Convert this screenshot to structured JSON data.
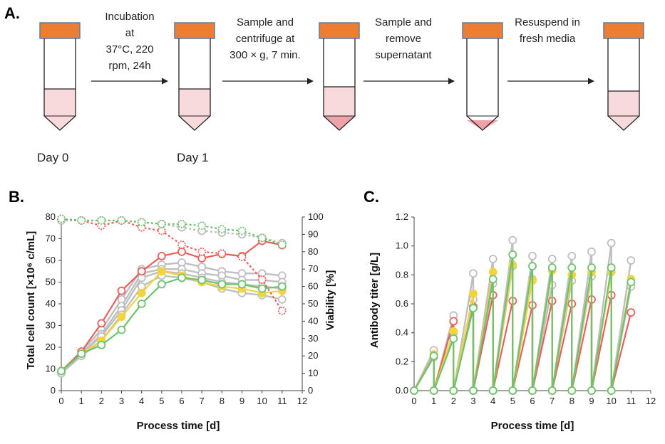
{
  "schematic": {
    "panel": "A.",
    "steps": [
      {
        "lines": [
          "Incubation",
          "at",
          "37°C, 220",
          "rpm, 24h"
        ]
      },
      {
        "lines": [
          "Sample and",
          "centrifuge at",
          "300 × g, 7 min."
        ]
      },
      {
        "lines": [
          "Sample and",
          "remove",
          "supernatant"
        ]
      },
      {
        "lines": [
          "Resuspend in",
          "fresh media"
        ]
      }
    ],
    "days": [
      "Day 0",
      "Day 1"
    ],
    "colors": {
      "cap": "#ED7D31",
      "cap_border": "#5B7FA6",
      "media": "#F8D9DC",
      "pellet": "#EFA2A8"
    }
  },
  "chart_data": [
    {
      "panel": "B.",
      "type": "line",
      "xlabel": "Process time [d]",
      "ylabel": "Total cell count [×10⁶ c/mL]",
      "y2label": "Viability [%]",
      "xlim": [
        0,
        12
      ],
      "ylim": [
        0,
        80
      ],
      "y2lim": [
        0,
        100
      ],
      "x_ticks": [
        "0",
        "1",
        "2",
        "3",
        "4",
        "5",
        "6",
        "7",
        "8",
        "9",
        "10",
        "11",
        "12"
      ],
      "y_ticks": [
        "0",
        "10",
        "20",
        "30",
        "40",
        "50",
        "60",
        "70",
        "80"
      ],
      "y2_ticks": [
        "0",
        "10",
        "20",
        "30",
        "40",
        "50",
        "60",
        "70",
        "80",
        "90",
        "100"
      ],
      "x": [
        0,
        1,
        2,
        3,
        4,
        5,
        6,
        7,
        8,
        9,
        10,
        11
      ],
      "series": [
        {
          "name": "grey-high",
          "axis": "left",
          "color": "#bfbfbf",
          "values": [
            9,
            18,
            28,
            42,
            56,
            58,
            59,
            57,
            55,
            54,
            54,
            53
          ]
        },
        {
          "name": "grey-mid-1",
          "axis": "left",
          "color": "#bfbfbf",
          "values": [
            9,
            17,
            26,
            39,
            54,
            56,
            56,
            54,
            53,
            51,
            51,
            50
          ]
        },
        {
          "name": "grey-mid-2",
          "axis": "left",
          "color": "#bfbfbf",
          "values": [
            8,
            17,
            25,
            37,
            52,
            55,
            54,
            52,
            50,
            49,
            48,
            47
          ]
        },
        {
          "name": "grey-low",
          "axis": "left",
          "color": "#bfbfbf",
          "values": [
            8,
            16,
            23,
            35,
            48,
            53,
            52,
            50,
            47,
            45,
            44,
            42
          ]
        },
        {
          "name": "red",
          "axis": "left",
          "color": "#E8605C",
          "values": [
            9,
            18,
            31,
            46,
            55,
            62,
            64,
            61,
            63,
            62,
            69,
            67
          ]
        },
        {
          "name": "yellow",
          "axis": "left",
          "color": "#F2D43C",
          "values": [
            9,
            17,
            23,
            34,
            45,
            55,
            53,
            50,
            48,
            47,
            45,
            46
          ]
        },
        {
          "name": "green",
          "axis": "left",
          "color": "#6DC36D",
          "values": [
            9,
            17,
            21,
            28,
            40,
            49,
            52,
            51,
            49,
            49,
            47,
            48
          ]
        },
        {
          "name": "grey-viability",
          "axis": "right",
          "color": "#bfbfbf",
          "values": [
            98,
            98,
            98,
            98,
            97,
            96,
            94,
            92,
            91,
            90,
            88,
            85
          ]
        },
        {
          "name": "red-viability",
          "axis": "right",
          "color": "#E8605C",
          "values": [
            99,
            98,
            95,
            98,
            94,
            92,
            84,
            80,
            79,
            77,
            64,
            46
          ]
        },
        {
          "name": "green-viability",
          "axis": "right",
          "color": "#6DC36D",
          "values": [
            99,
            98,
            98,
            98,
            97,
            96,
            96,
            95,
            93,
            92,
            88,
            84
          ]
        }
      ]
    },
    {
      "panel": "C.",
      "type": "line",
      "xlabel": "Process time [d]",
      "ylabel": "Antibody titer [g/L]",
      "xlim": [
        0,
        12
      ],
      "ylim": [
        0,
        1.2
      ],
      "x_ticks": [
        "0",
        "1",
        "2",
        "3",
        "4",
        "5",
        "6",
        "7",
        "8",
        "9",
        "10",
        "11",
        "12"
      ],
      "y_ticks": [
        "0.0",
        "0.2",
        "0.4",
        "0.6",
        "0.8",
        "1.0",
        "1.2"
      ],
      "x": [
        0,
        1,
        1,
        2,
        2,
        3,
        3,
        4,
        4,
        5,
        5,
        6,
        6,
        7,
        7,
        8,
        8,
        9,
        9,
        10,
        10,
        11
      ],
      "series": [
        {
          "name": "grey-high",
          "color": "#bfbfbf",
          "values": [
            0,
            0.28,
            0,
            0.52,
            0,
            0.81,
            0,
            0.91,
            0,
            1.04,
            0,
            0.93,
            0,
            0.91,
            0,
            0.93,
            0,
            0.96,
            0,
            1.02,
            0,
            0.9
          ]
        },
        {
          "name": "grey-low",
          "color": "#bfbfbf",
          "values": [
            0,
            0.23,
            0,
            0.4,
            0,
            0.63,
            0,
            0.74,
            0,
            0.86,
            0,
            0.77,
            0,
            0.73,
            0,
            0.76,
            0,
            0.79,
            0,
            0.82,
            0,
            0.72
          ]
        },
        {
          "name": "red",
          "color": "#E8605C",
          "values": [
            0,
            0.25,
            0,
            0.48,
            0,
            0.58,
            0,
            0.66,
            0,
            0.62,
            0,
            0.59,
            0,
            0.62,
            0,
            0.6,
            0,
            0.63,
            0,
            0.66,
            0,
            0.54
          ]
        },
        {
          "name": "yellow",
          "color": "#F2D43C",
          "values": [
            0,
            0.25,
            0,
            0.41,
            0,
            0.67,
            0,
            0.82,
            0,
            0.87,
            0,
            0.76,
            0,
            0.83,
            0,
            0.8,
            0,
            0.82,
            0,
            0.82,
            0,
            0.77
          ]
        },
        {
          "name": "green",
          "color": "#6DC36D",
          "values": [
            0,
            0.24,
            0,
            0.36,
            0,
            0.57,
            0,
            0.77,
            0,
            0.94,
            0,
            0.86,
            0,
            0.85,
            0,
            0.85,
            0,
            0.85,
            0,
            0.85,
            0,
            0.75
          ]
        }
      ]
    }
  ]
}
